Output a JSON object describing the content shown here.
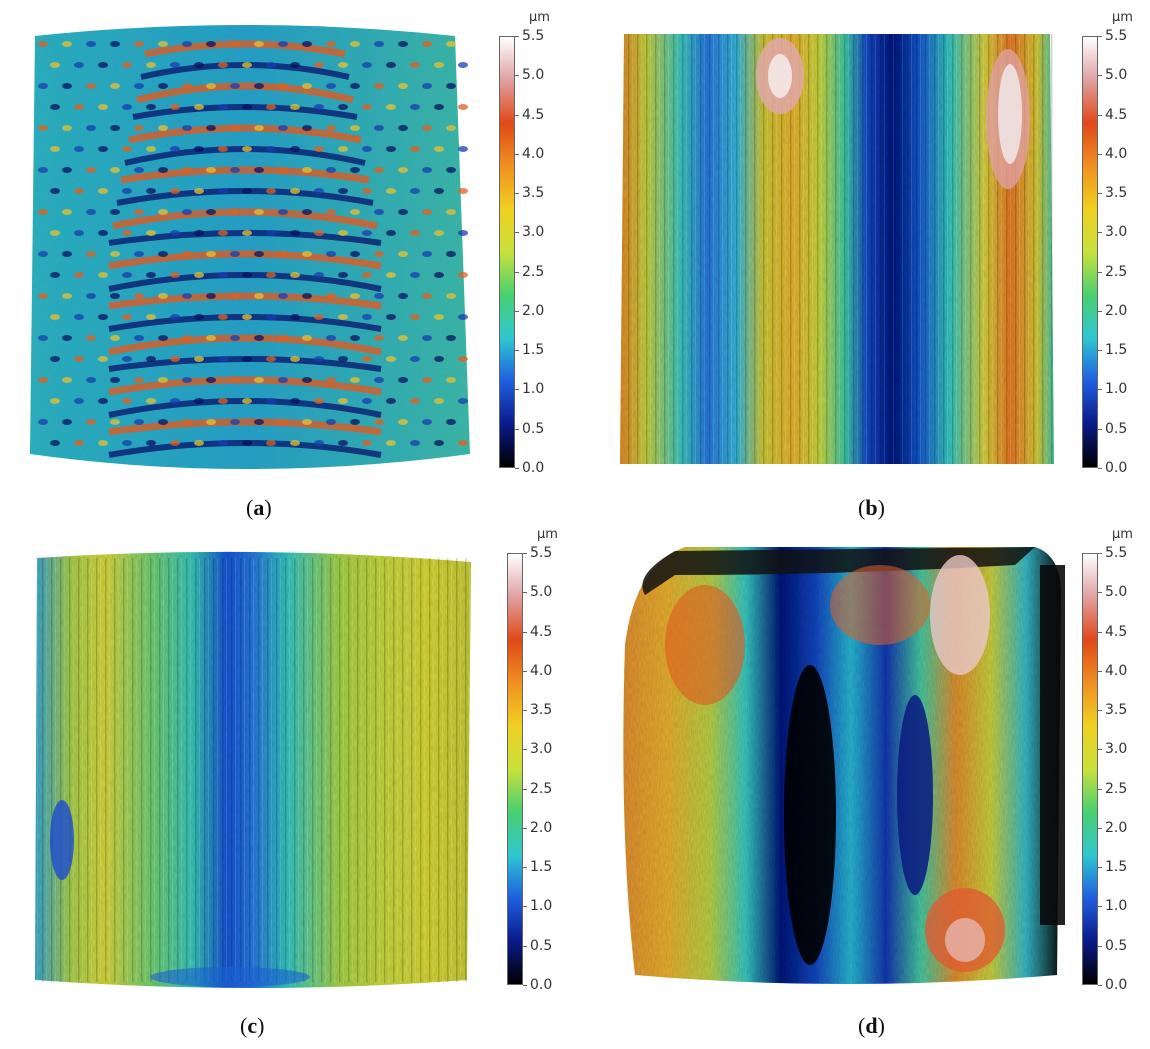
{
  "figure": {
    "colorbar": {
      "unit": "µm",
      "ticks": [
        "5.5",
        "5.0",
        "4.5",
        "4.0",
        "3.5",
        "3.0",
        "2.5",
        "2.0",
        "1.5",
        "1.0",
        "0.5",
        "0.0"
      ],
      "range": [
        0.0,
        5.5
      ],
      "colors": [
        "#000000",
        "#0a1a8a",
        "#1f5fe0",
        "#2ec7d0",
        "#48d070",
        "#c8e03c",
        "#f0d020",
        "#f09020",
        "#e04818",
        "#e0a0a0",
        "#ffffff"
      ]
    },
    "panels": [
      {
        "id": "a",
        "caption_open": "(",
        "caption_letter": "a",
        "caption_close": ")",
        "surface": "periodic-ripple-texture"
      },
      {
        "id": "b",
        "caption_open": "(",
        "caption_letter": "b",
        "caption_close": ")",
        "surface": "vertical-stripes"
      },
      {
        "id": "c",
        "caption_open": "(",
        "caption_letter": "c",
        "caption_close": ")",
        "surface": "smooth-vertical-grooves"
      },
      {
        "id": "d",
        "caption_open": "(",
        "caption_letter": "d",
        "caption_close": ")",
        "surface": "worn-surface-with-deep-pits"
      }
    ]
  }
}
